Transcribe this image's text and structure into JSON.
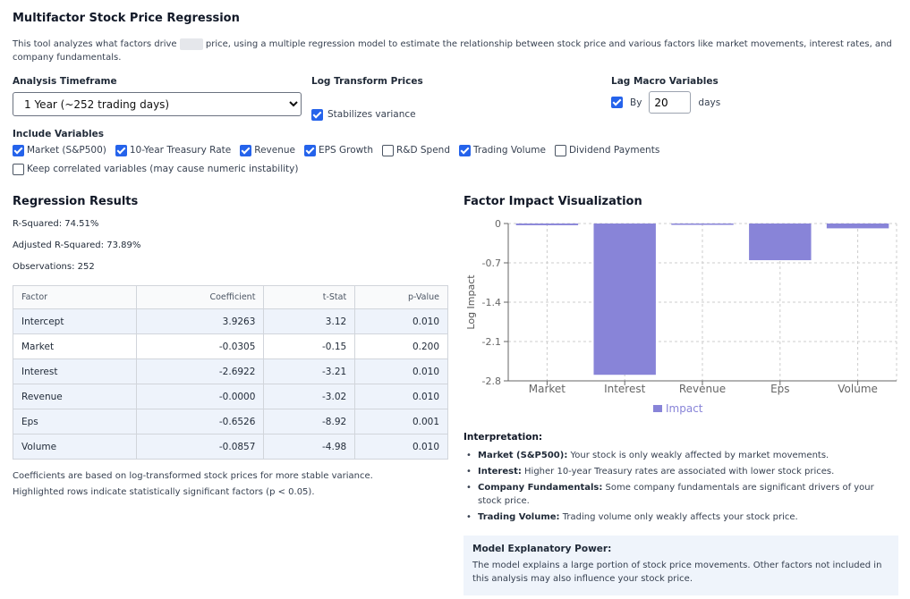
{
  "header": {
    "title": "Multifactor Stock Price Regression",
    "description_before": "This tool analyzes what factors drive",
    "description_after": "price, using a multiple regression model to estimate the relationship between stock price and various factors like market movements, interest rates, and company fundamentals."
  },
  "controls": {
    "timeframe_label": "Analysis Timeframe",
    "timeframe_value": "1 Year (~252 trading days)",
    "log_label": "Log Transform Prices",
    "log_checkbox_label": "Stabilizes variance",
    "log_checked": true,
    "lag_label": "Lag Macro Variables",
    "lag_by_label": "By",
    "lag_value": "20",
    "lag_days_label": "days",
    "include_label": "Include Variables",
    "variables": [
      {
        "label": "Market (S&P500)",
        "checked": true
      },
      {
        "label": "10-Year Treasury Rate",
        "checked": true
      },
      {
        "label": "Revenue",
        "checked": true
      },
      {
        "label": "EPS Growth",
        "checked": true
      },
      {
        "label": "R&D Spend",
        "checked": false
      },
      {
        "label": "Trading Volume",
        "checked": true
      },
      {
        "label": "Dividend Payments",
        "checked": false
      }
    ],
    "keep_correlated_label": "Keep correlated variables (may cause numeric instability)",
    "keep_correlated_checked": false
  },
  "results": {
    "title": "Regression Results",
    "r_squared_label": "R-Squared:",
    "r_squared": "74.51%",
    "adj_r_squared_label": "Adjusted R-Squared:",
    "adj_r_squared": "73.89%",
    "observations_label": "Observations:",
    "observations": "252",
    "columns": [
      "Factor",
      "Coefficient",
      "t-Stat",
      "p-Value"
    ],
    "rows": [
      {
        "factor": "Intercept",
        "coef": "3.9263",
        "t": "3.12",
        "p": "0.010",
        "significant": true
      },
      {
        "factor": "Market",
        "coef": "-0.0305",
        "t": "-0.15",
        "p": "0.200",
        "significant": false
      },
      {
        "factor": "Interest",
        "coef": "-2.6922",
        "t": "-3.21",
        "p": "0.010",
        "significant": true
      },
      {
        "factor": "Revenue",
        "coef": "-0.0000",
        "t": "-3.02",
        "p": "0.010",
        "significant": true
      },
      {
        "factor": "Eps",
        "coef": "-0.6526",
        "t": "-8.92",
        "p": "0.001",
        "significant": true
      },
      {
        "factor": "Volume",
        "coef": "-0.0857",
        "t": "-4.98",
        "p": "0.010",
        "significant": true
      }
    ],
    "note1": "Coefficients are based on log-transformed stock prices for more stable variance.",
    "note2": "Highlighted rows indicate statistically significant factors (p < 0.05)."
  },
  "chart_title": "Factor Impact Visualization",
  "chart_data": {
    "type": "bar",
    "categories": [
      "Market",
      "Interest",
      "Revenue",
      "Eps",
      "Volume"
    ],
    "series": [
      {
        "name": "Impact",
        "values": [
          -0.0305,
          -2.6922,
          0.0,
          -0.6526,
          -0.0857
        ]
      }
    ],
    "ylabel": "Log Impact",
    "yticks": [
      "0",
      "-0.7",
      "-1.4",
      "-2.1",
      "-2.8"
    ],
    "ylim": [
      -2.8,
      0
    ],
    "grid": true,
    "legend": "bottom",
    "color": "#8884d8"
  },
  "interpretation": {
    "title": "Interpretation:",
    "items": [
      {
        "bold": "Market (S&P500):",
        "text": " Your stock is only weakly affected by market movements."
      },
      {
        "bold": "Interest:",
        "text": " Higher 10-year Treasury rates are associated with lower stock prices."
      },
      {
        "bold": "Company Fundamentals:",
        "text": " Some company fundamentals are significant drivers of your stock price."
      },
      {
        "bold": "Trading Volume:",
        "text": " Trading volume only weakly affects your stock price."
      }
    ]
  },
  "power": {
    "title": "Model Explanatory Power:",
    "text": "The model explains a large portion of stock price movements. Other factors not included in this analysis may also influence your stock price."
  }
}
